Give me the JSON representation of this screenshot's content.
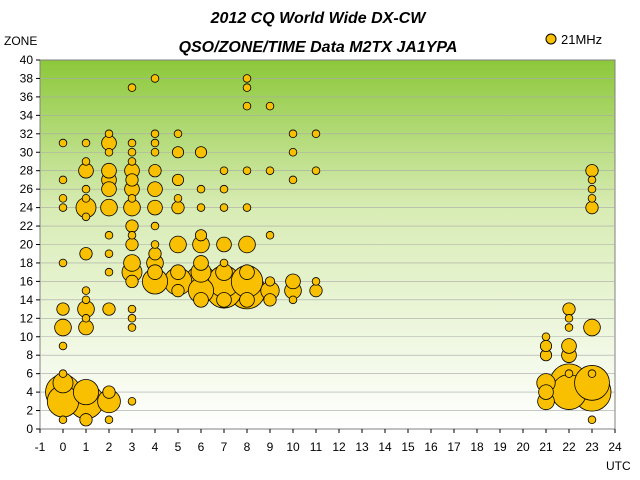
{
  "chart_data": {
    "type": "scatter",
    "title": "2012 CQ World Wide DX-CW",
    "subtitle": "QSO/ZONE/TIME Data M2TX JA1YPA",
    "xlabel": "UTC",
    "ylabel": "ZONE",
    "xlim": [
      -1,
      24
    ],
    "ylim": [
      0,
      40
    ],
    "x_ticks": [
      "-1",
      "0",
      "1",
      "2",
      "3",
      "4",
      "5",
      "6",
      "7",
      "8",
      "9",
      "10",
      "11",
      "12",
      "13",
      "14",
      "15",
      "16",
      "17",
      "18",
      "19",
      "20",
      "21",
      "22",
      "23",
      "24"
    ],
    "y_ticks": [
      "0",
      "2",
      "4",
      "6",
      "8",
      "10",
      "12",
      "14",
      "16",
      "18",
      "20",
      "22",
      "24",
      "26",
      "28",
      "30",
      "32",
      "34",
      "36",
      "38",
      "40"
    ],
    "grid": true,
    "legend_position": "top-right",
    "bubble_color": "#f8c000",
    "bubble_edge_color": "#000000",
    "series": [
      {
        "name": "21MHz",
        "points": [
          {
            "x": 0,
            "y": 4,
            "size": 10
          },
          {
            "x": 0,
            "y": 3,
            "size": 8
          },
          {
            "x": 0,
            "y": 5,
            "size": 3
          },
          {
            "x": 0,
            "y": 11,
            "size": 2
          },
          {
            "x": 0,
            "y": 13,
            "size": 1
          },
          {
            "x": 0,
            "y": 6,
            "size": 0.3
          },
          {
            "x": 0,
            "y": 9,
            "size": 0.3
          },
          {
            "x": 0,
            "y": 18,
            "size": 0.3
          },
          {
            "x": 0,
            "y": 24,
            "size": 0.3
          },
          {
            "x": 0,
            "y": 25,
            "size": 0.3
          },
          {
            "x": 0,
            "y": 27,
            "size": 0.3
          },
          {
            "x": 0,
            "y": 31,
            "size": 0.3
          },
          {
            "x": 0,
            "y": 1,
            "size": 0.3
          },
          {
            "x": 1,
            "y": 3,
            "size": 10
          },
          {
            "x": 1,
            "y": 4,
            "size": 5
          },
          {
            "x": 1,
            "y": 24,
            "size": 3
          },
          {
            "x": 1,
            "y": 13,
            "size": 2
          },
          {
            "x": 1,
            "y": 11,
            "size": 1.5
          },
          {
            "x": 1,
            "y": 28,
            "size": 1.5
          },
          {
            "x": 1,
            "y": 19,
            "size": 1
          },
          {
            "x": 1,
            "y": 1,
            "size": 1
          },
          {
            "x": 1,
            "y": 14,
            "size": 0.3
          },
          {
            "x": 1,
            "y": 15,
            "size": 0.3
          },
          {
            "x": 1,
            "y": 12,
            "size": 0.3
          },
          {
            "x": 1,
            "y": 23,
            "size": 0.3
          },
          {
            "x": 1,
            "y": 25,
            "size": 0.3
          },
          {
            "x": 1,
            "y": 26,
            "size": 0.3
          },
          {
            "x": 1,
            "y": 29,
            "size": 0.3
          },
          {
            "x": 1,
            "y": 31,
            "size": 0.3
          },
          {
            "x": 2,
            "y": 3,
            "size": 4
          },
          {
            "x": 2,
            "y": 24,
            "size": 2
          },
          {
            "x": 2,
            "y": 27,
            "size": 1.5
          },
          {
            "x": 2,
            "y": 28,
            "size": 1.5
          },
          {
            "x": 2,
            "y": 31,
            "size": 1.5
          },
          {
            "x": 2,
            "y": 26,
            "size": 1.5
          },
          {
            "x": 2,
            "y": 13,
            "size": 1
          },
          {
            "x": 2,
            "y": 4,
            "size": 1
          },
          {
            "x": 2,
            "y": 19,
            "size": 0.3
          },
          {
            "x": 2,
            "y": 21,
            "size": 0.3
          },
          {
            "x": 2,
            "y": 17,
            "size": 0.3
          },
          {
            "x": 2,
            "y": 30,
            "size": 0.3
          },
          {
            "x": 2,
            "y": 32,
            "size": 0.3
          },
          {
            "x": 2,
            "y": 1,
            "size": 0.3
          },
          {
            "x": 3,
            "y": 17,
            "size": 3
          },
          {
            "x": 3,
            "y": 18,
            "size": 2
          },
          {
            "x": 3,
            "y": 24,
            "size": 2
          },
          {
            "x": 3,
            "y": 26,
            "size": 1.5
          },
          {
            "x": 3,
            "y": 28,
            "size": 1.5
          },
          {
            "x": 3,
            "y": 16,
            "size": 1
          },
          {
            "x": 3,
            "y": 20,
            "size": 1
          },
          {
            "x": 3,
            "y": 22,
            "size": 1
          },
          {
            "x": 3,
            "y": 27,
            "size": 1
          },
          {
            "x": 3,
            "y": 13,
            "size": 0.3
          },
          {
            "x": 3,
            "y": 11,
            "size": 0.3
          },
          {
            "x": 3,
            "y": 12,
            "size": 0.3
          },
          {
            "x": 3,
            "y": 21,
            "size": 0.3
          },
          {
            "x": 3,
            "y": 25,
            "size": 0.3
          },
          {
            "x": 3,
            "y": 29,
            "size": 0.3
          },
          {
            "x": 3,
            "y": 30,
            "size": 0.3
          },
          {
            "x": 3,
            "y": 31,
            "size": 0.3
          },
          {
            "x": 3,
            "y": 37,
            "size": 0.3
          },
          {
            "x": 3,
            "y": 3,
            "size": 0.3
          },
          {
            "x": 4,
            "y": 16,
            "size": 5
          },
          {
            "x": 4,
            "y": 18,
            "size": 2
          },
          {
            "x": 4,
            "y": 17,
            "size": 1.5
          },
          {
            "x": 4,
            "y": 24,
            "size": 1.5
          },
          {
            "x": 4,
            "y": 26,
            "size": 1.5
          },
          {
            "x": 4,
            "y": 28,
            "size": 1
          },
          {
            "x": 4,
            "y": 19,
            "size": 1
          },
          {
            "x": 4,
            "y": 20,
            "size": 0.3
          },
          {
            "x": 4,
            "y": 22,
            "size": 0.3
          },
          {
            "x": 4,
            "y": 30,
            "size": 0.3
          },
          {
            "x": 4,
            "y": 31,
            "size": 0.3
          },
          {
            "x": 4,
            "y": 32,
            "size": 0.3
          },
          {
            "x": 4,
            "y": 38,
            "size": 0.3
          },
          {
            "x": 5,
            "y": 16,
            "size": 6
          },
          {
            "x": 5,
            "y": 20,
            "size": 2
          },
          {
            "x": 5,
            "y": 17,
            "size": 1.5
          },
          {
            "x": 5,
            "y": 15,
            "size": 1
          },
          {
            "x": 5,
            "y": 24,
            "size": 1
          },
          {
            "x": 5,
            "y": 27,
            "size": 0.8
          },
          {
            "x": 5,
            "y": 30,
            "size": 0.8
          },
          {
            "x": 5,
            "y": 25,
            "size": 0.3
          },
          {
            "x": 5,
            "y": 32,
            "size": 0.3
          },
          {
            "x": 6,
            "y": 16,
            "size": 8
          },
          {
            "x": 6,
            "y": 15,
            "size": 5
          },
          {
            "x": 6,
            "y": 17,
            "size": 3
          },
          {
            "x": 6,
            "y": 20,
            "size": 2
          },
          {
            "x": 6,
            "y": 14,
            "size": 1.5
          },
          {
            "x": 6,
            "y": 18,
            "size": 1.5
          },
          {
            "x": 6,
            "y": 21,
            "size": 0.8
          },
          {
            "x": 6,
            "y": 30,
            "size": 0.8
          },
          {
            "x": 6,
            "y": 24,
            "size": 0.3
          },
          {
            "x": 6,
            "y": 26,
            "size": 0.3
          },
          {
            "x": 7,
            "y": 15,
            "size": 10
          },
          {
            "x": 7,
            "y": 16,
            "size": 8
          },
          {
            "x": 7,
            "y": 17,
            "size": 2
          },
          {
            "x": 7,
            "y": 14,
            "size": 1.5
          },
          {
            "x": 7,
            "y": 20,
            "size": 1.5
          },
          {
            "x": 7,
            "y": 18,
            "size": 0.3
          },
          {
            "x": 7,
            "y": 24,
            "size": 0.3
          },
          {
            "x": 7,
            "y": 26,
            "size": 0.3
          },
          {
            "x": 7,
            "y": 28,
            "size": 0.3
          },
          {
            "x": 8,
            "y": 15,
            "size": 11
          },
          {
            "x": 8,
            "y": 16,
            "size": 8
          },
          {
            "x": 8,
            "y": 20,
            "size": 2
          },
          {
            "x": 8,
            "y": 14,
            "size": 1.5
          },
          {
            "x": 8,
            "y": 17,
            "size": 1.5
          },
          {
            "x": 8,
            "y": 24,
            "size": 0.3
          },
          {
            "x": 8,
            "y": 28,
            "size": 0.3
          },
          {
            "x": 8,
            "y": 35,
            "size": 0.3
          },
          {
            "x": 8,
            "y": 37,
            "size": 0.3
          },
          {
            "x": 8,
            "y": 38,
            "size": 0.3
          },
          {
            "x": 9,
            "y": 15,
            "size": 2.5
          },
          {
            "x": 9,
            "y": 14,
            "size": 1
          },
          {
            "x": 9,
            "y": 16,
            "size": 0.5
          },
          {
            "x": 9,
            "y": 21,
            "size": 0.3
          },
          {
            "x": 9,
            "y": 28,
            "size": 0.3
          },
          {
            "x": 9,
            "y": 35,
            "size": 0.3
          },
          {
            "x": 10,
            "y": 15,
            "size": 2
          },
          {
            "x": 10,
            "y": 16,
            "size": 1.5
          },
          {
            "x": 10,
            "y": 14,
            "size": 0.3
          },
          {
            "x": 10,
            "y": 27,
            "size": 0.3
          },
          {
            "x": 10,
            "y": 30,
            "size": 0.3
          },
          {
            "x": 10,
            "y": 32,
            "size": 0.3
          },
          {
            "x": 11,
            "y": 15,
            "size": 1
          },
          {
            "x": 11,
            "y": 16,
            "size": 0.3
          },
          {
            "x": 11,
            "y": 28,
            "size": 0.3
          },
          {
            "x": 11,
            "y": 32,
            "size": 0.3
          },
          {
            "x": 21,
            "y": 5,
            "size": 2.5
          },
          {
            "x": 21,
            "y": 3,
            "size": 2
          },
          {
            "x": 21,
            "y": 4,
            "size": 1.5
          },
          {
            "x": 21,
            "y": 8,
            "size": 0.8
          },
          {
            "x": 21,
            "y": 9,
            "size": 0.8
          },
          {
            "x": 21,
            "y": 10,
            "size": 0.3
          },
          {
            "x": 22,
            "y": 5,
            "size": 12
          },
          {
            "x": 22,
            "y": 4,
            "size": 10
          },
          {
            "x": 22,
            "y": 8,
            "size": 1.5
          },
          {
            "x": 22,
            "y": 9,
            "size": 1.5
          },
          {
            "x": 22,
            "y": 13,
            "size": 1
          },
          {
            "x": 22,
            "y": 6,
            "size": 0.3
          },
          {
            "x": 22,
            "y": 11,
            "size": 0.3
          },
          {
            "x": 22,
            "y": 12,
            "size": 0.3
          },
          {
            "x": 23,
            "y": 4,
            "size": 12
          },
          {
            "x": 23,
            "y": 5,
            "size": 10
          },
          {
            "x": 23,
            "y": 11,
            "size": 2
          },
          {
            "x": 23,
            "y": 24,
            "size": 1
          },
          {
            "x": 23,
            "y": 28,
            "size": 1
          },
          {
            "x": 23,
            "y": 6,
            "size": 0.3
          },
          {
            "x": 23,
            "y": 25,
            "size": 0.3
          },
          {
            "x": 23,
            "y": 26,
            "size": 0.3
          },
          {
            "x": 23,
            "y": 27,
            "size": 0.3
          },
          {
            "x": 23,
            "y": 1,
            "size": 0.3
          }
        ]
      }
    ]
  }
}
